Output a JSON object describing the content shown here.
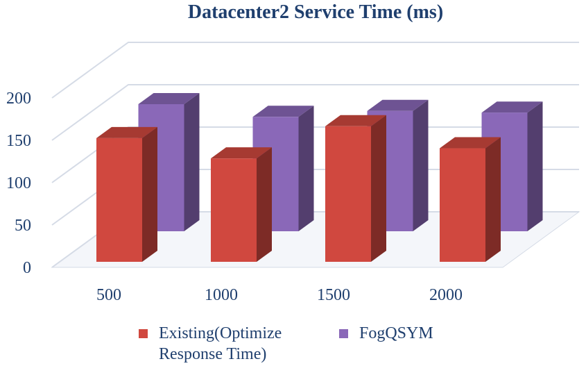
{
  "chart_data": {
    "type": "bar3d",
    "title": "Datacenter2 Service Time (ms)",
    "categories": [
      "500",
      "1000",
      "1500",
      "2000"
    ],
    "series": [
      {
        "name": "Existing(Optimize Response Time)",
        "color": "#d0483f",
        "values": [
          146,
          122,
          160,
          134
        ]
      },
      {
        "name": "FogQSYM",
        "color": "#8a68b8",
        "values": [
          150,
          135,
          142,
          140
        ]
      }
    ],
    "ylim": [
      0,
      200
    ],
    "yticks": [
      0,
      50,
      100,
      150,
      200
    ],
    "grid": true
  }
}
